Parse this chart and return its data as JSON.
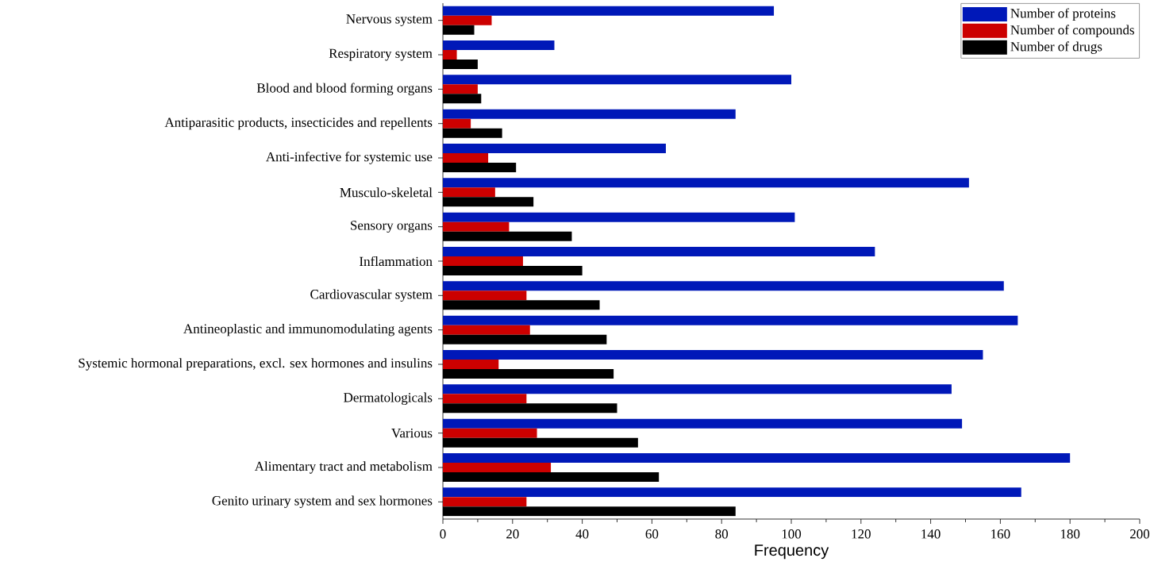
{
  "chart_data": {
    "type": "bar",
    "orientation": "horizontal",
    "xlabel": "Frequency",
    "categories": [
      "Nervous system",
      "Respiratory system",
      "Blood and blood forming organs",
      "Antiparasitic products, insecticides and repellents",
      "Anti-infective for systemic use",
      "Musculo-skeletal",
      "Sensory organs",
      "Inflammation",
      "Cardiovascular system",
      "Antineoplastic and immunomodulating agents",
      "Systemic hormonal preparations, excl. sex hormones and insulins",
      "Dermatologicals",
      "Various",
      "Alimentary tract and metabolism",
      "Genito urinary system and sex hormones"
    ],
    "series": [
      {
        "name": "Number of proteins",
        "color": "#0018b8",
        "values": [
          95,
          32,
          100,
          84,
          64,
          151,
          101,
          124,
          161,
          165,
          155,
          146,
          149,
          180,
          166
        ]
      },
      {
        "name": "Number of compounds",
        "color": "#cc0000",
        "values": [
          14,
          4,
          10,
          8,
          13,
          15,
          19,
          23,
          24,
          25,
          16,
          24,
          27,
          31,
          24
        ]
      },
      {
        "name": "Number of drugs",
        "color": "#000000",
        "values": [
          9,
          10,
          11,
          17,
          21,
          26,
          37,
          40,
          45,
          47,
          49,
          50,
          56,
          62,
          84
        ]
      }
    ],
    "xlim": [
      0,
      200
    ],
    "xticks": [
      0,
      20,
      40,
      60,
      80,
      100,
      120,
      140,
      160,
      180,
      200
    ],
    "legend": "top right",
    "grid": false
  }
}
